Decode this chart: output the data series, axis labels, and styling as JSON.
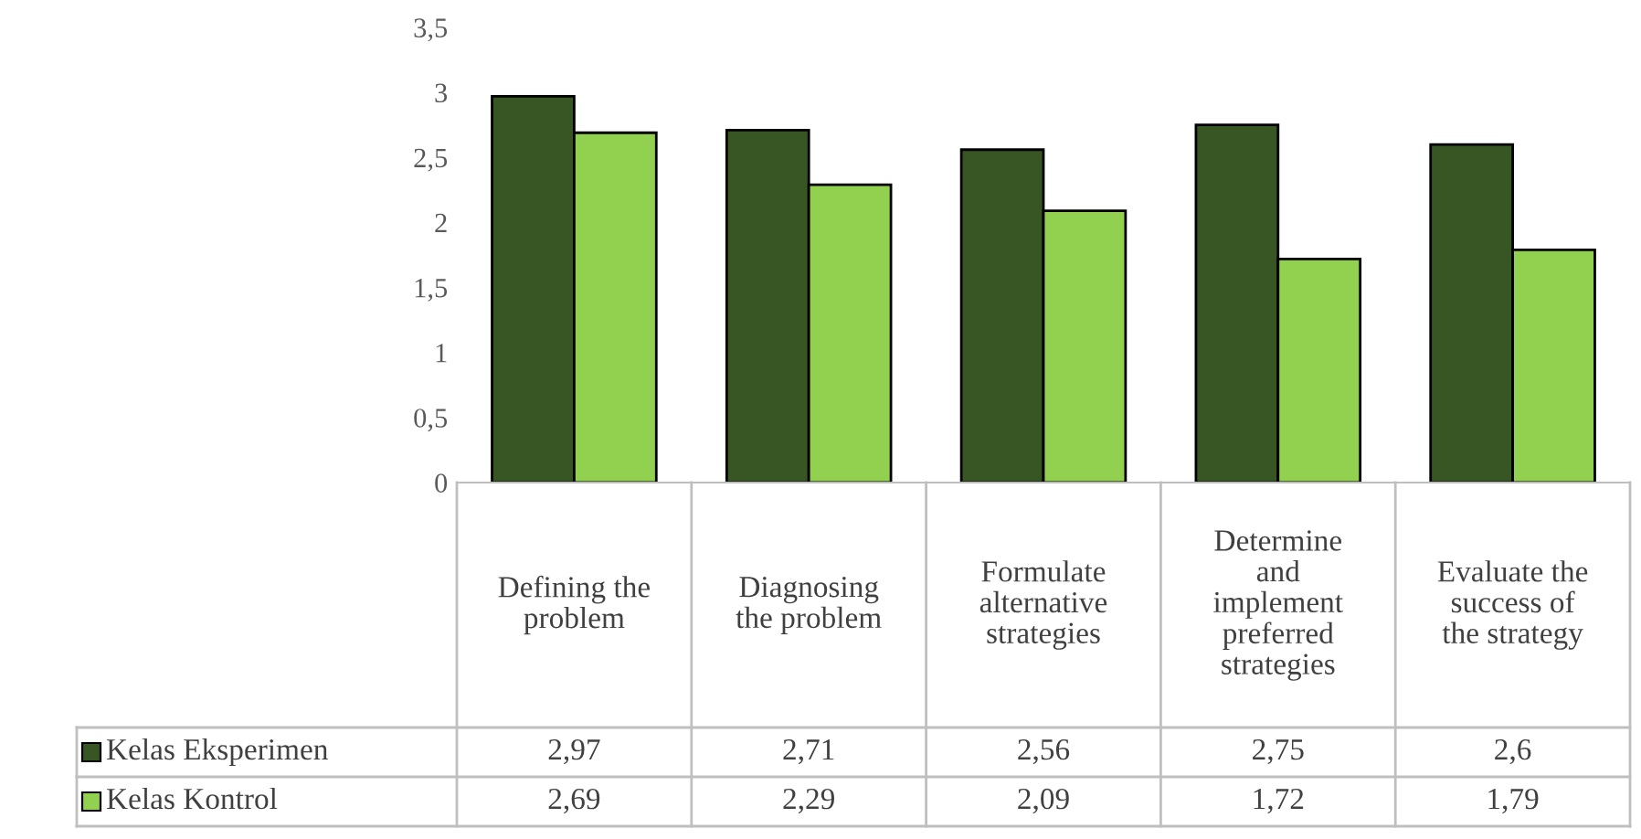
{
  "chart_data": {
    "type": "bar",
    "categories": [
      "Defining the\nproblem",
      "Diagnosing\nthe problem",
      "Formulate\nalternative\nstrategies",
      "Determine\nand\nimplement\npreferred\nstrategies",
      "Evaluate the\nsuccess of\nthe strategy"
    ],
    "series": [
      {
        "name": "Kelas Eksperimen",
        "color": "#375623",
        "values": [
          2.97,
          2.71,
          2.56,
          2.75,
          2.6
        ],
        "value_labels": [
          "2,97",
          "2,71",
          "2,56",
          "2,75",
          "2,6"
        ]
      },
      {
        "name": "Kelas Kontrol",
        "color": "#92d050",
        "values": [
          2.69,
          2.29,
          2.09,
          1.72,
          1.79
        ],
        "value_labels": [
          "2,69",
          "2,29",
          "2,09",
          "1,72",
          "1,79"
        ]
      }
    ],
    "ylim": [
      0,
      3.5
    ],
    "yticks": [
      0,
      {
        "value": 0.5,
        "label": "0,5"
      },
      1,
      {
        "value": 1.5,
        "label": "1,5"
      },
      2,
      {
        "value": 2.5,
        "label": "2,5"
      },
      3,
      {
        "value": 3.5,
        "label": "3,5"
      }
    ],
    "legend": "bottom",
    "grid": false
  }
}
